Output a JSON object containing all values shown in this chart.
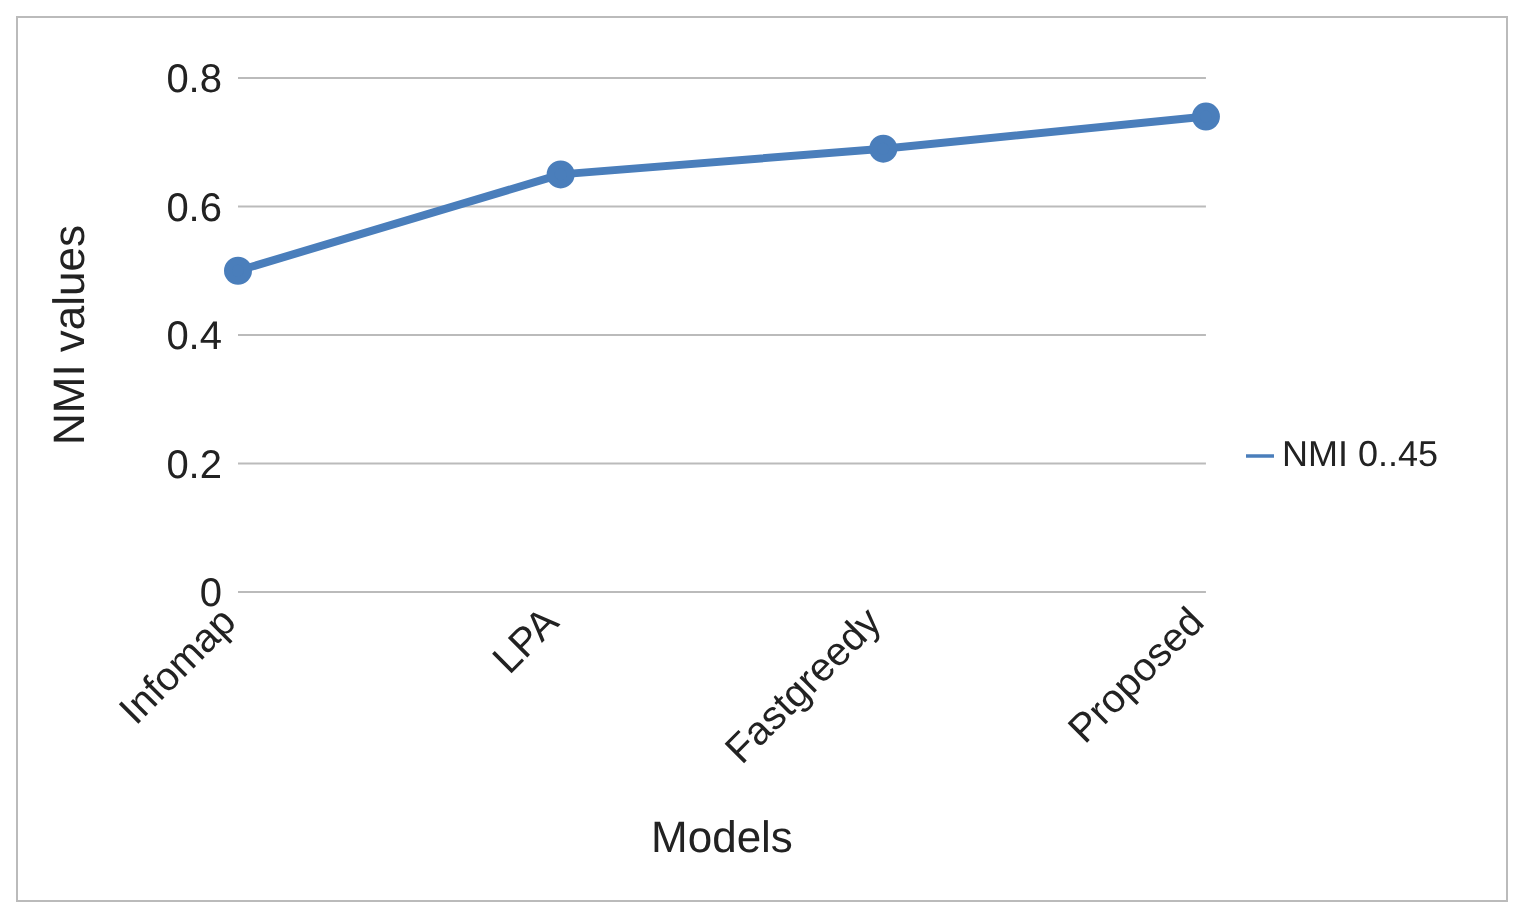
{
  "chart_data": {
    "type": "line",
    "xlabel": "Models",
    "ylabel": "NMI values",
    "categories": [
      "Infomap",
      "LPA",
      "Fastgreedy",
      "Proposed"
    ],
    "series": [
      {
        "name": "NMI 0..45",
        "color": "#4a7ebb",
        "values": [
          0.5,
          0.65,
          0.69,
          0.74
        ]
      }
    ],
    "ylim": [
      0,
      0.8
    ],
    "yticks": [
      0,
      0.2,
      0.4,
      0.6,
      0.8
    ],
    "grid": "y",
    "legend": "right",
    "marker": "circle"
  }
}
